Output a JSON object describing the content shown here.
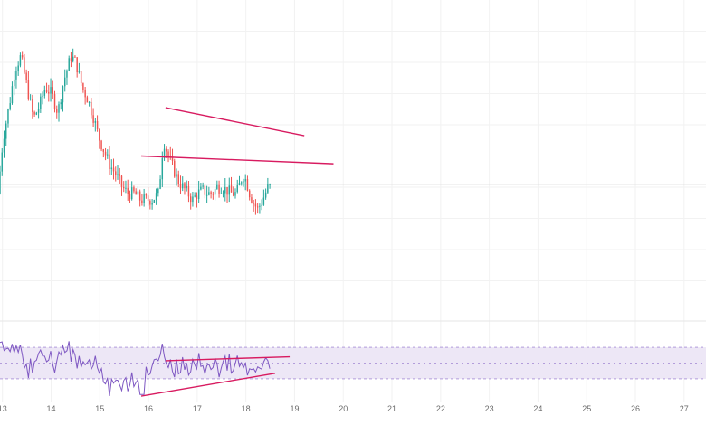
{
  "colors": {
    "up": "#26a69a",
    "down": "#ef5350",
    "trendline": "#d81b60",
    "rsi_line": "#7e57c2",
    "rsi_band": "#ede7f6",
    "rsi_band_border": "#b39ddb",
    "grid": "#f2f2f2",
    "axis_text": "#6b6b6b",
    "price_line": "#dcdcdc"
  },
  "chart_data": [
    {
      "type": "candlestick",
      "panel": "price",
      "title": "",
      "x_axis": {
        "labels": [
          "13",
          "14",
          "15",
          "16",
          "17",
          "18",
          "19",
          "20",
          "21",
          "22",
          "23",
          "24",
          "25",
          "26",
          "27"
        ],
        "range": [
          12.95,
          27.45
        ]
      },
      "y_axis": {
        "range": [
          0,
          100
        ],
        "tick_labels_visible": false
      },
      "grid": true,
      "candles": [],
      "trendlines": [
        {
          "name": "descending resistance",
          "from": [
            16.35,
            65.5
          ],
          "to": [
            19.2,
            56.5
          ]
        },
        {
          "name": "horizontal support",
          "from": [
            15.85,
            50.0
          ],
          "to": [
            19.8,
            47.5
          ]
        }
      ]
    },
    {
      "type": "line",
      "panel": "rsi",
      "title": "",
      "y_range": [
        0,
        100
      ],
      "band": [
        30,
        70
      ],
      "midline": 50,
      "series": [
        {
          "values": []
        }
      ],
      "trendlines": [
        {
          "name": "rising support",
          "from": [
            15.85,
            8
          ],
          "to": [
            18.6,
            37
          ]
        },
        {
          "name": "resistance",
          "from": [
            16.35,
            53
          ],
          "to": [
            18.9,
            58
          ]
        }
      ]
    }
  ]
}
